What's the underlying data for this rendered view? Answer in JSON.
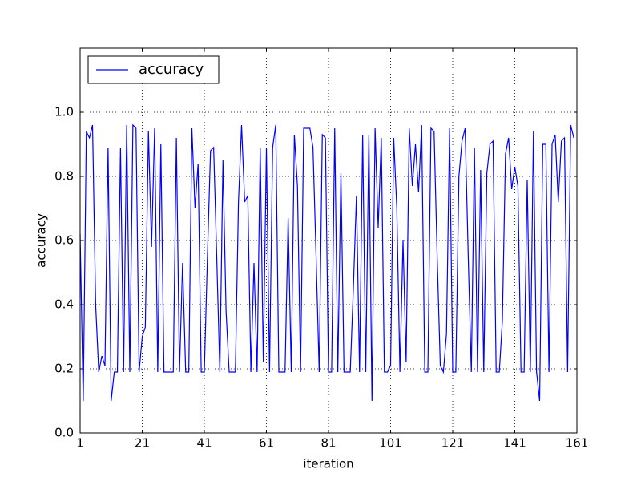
{
  "chart_data": {
    "type": "line",
    "xlabel": "iteration",
    "ylabel": "accuracy",
    "x": [
      1,
      2,
      3,
      4,
      5,
      6,
      7,
      8,
      9,
      10,
      11,
      12,
      13,
      14,
      15,
      16,
      17,
      18,
      19,
      20,
      21,
      22,
      23,
      24,
      25,
      26,
      27,
      28,
      29,
      30,
      31,
      32,
      33,
      34,
      35,
      36,
      37,
      38,
      39,
      40,
      41,
      42,
      43,
      44,
      45,
      46,
      47,
      48,
      49,
      50,
      51,
      52,
      53,
      54,
      55,
      56,
      57,
      58,
      59,
      60,
      61,
      62,
      63,
      64,
      65,
      66,
      67,
      68,
      69,
      70,
      71,
      72,
      73,
      74,
      75,
      76,
      77,
      78,
      79,
      80,
      81,
      82,
      83,
      84,
      85,
      86,
      87,
      88,
      89,
      90,
      91,
      92,
      93,
      94,
      95,
      96,
      97,
      98,
      99,
      100,
      101,
      102,
      103,
      104,
      105,
      106,
      107,
      108,
      109,
      110,
      111,
      112,
      113,
      114,
      115,
      116,
      117,
      118,
      119,
      120,
      121,
      122,
      123,
      124,
      125,
      126,
      127,
      128,
      129,
      130,
      131,
      132,
      133,
      134,
      135,
      136,
      137,
      138,
      139,
      140,
      141,
      142,
      143,
      144,
      145,
      146,
      147,
      148,
      149,
      150,
      151,
      152,
      153,
      154,
      155,
      156,
      157,
      158,
      159,
      160
    ],
    "series": [
      {
        "name": "accuracy",
        "color": "#0000ff",
        "values": [
          0.62,
          0.1,
          0.94,
          0.92,
          0.96,
          0.4,
          0.19,
          0.24,
          0.21,
          0.89,
          0.1,
          0.19,
          0.19,
          0.89,
          0.19,
          0.96,
          0.19,
          0.96,
          0.95,
          0.19,
          0.3,
          0.33,
          0.94,
          0.58,
          0.95,
          0.19,
          0.9,
          0.19,
          0.19,
          0.19,
          0.19,
          0.92,
          0.19,
          0.53,
          0.19,
          0.19,
          0.95,
          0.7,
          0.84,
          0.19,
          0.19,
          0.55,
          0.88,
          0.89,
          0.55,
          0.19,
          0.85,
          0.38,
          0.19,
          0.19,
          0.19,
          0.72,
          0.96,
          0.72,
          0.74,
          0.19,
          0.53,
          0.19,
          0.89,
          0.22,
          0.89,
          0.19,
          0.89,
          0.96,
          0.19,
          0.19,
          0.19,
          0.67,
          0.19,
          0.93,
          0.77,
          0.19,
          0.95,
          0.95,
          0.95,
          0.89,
          0.55,
          0.19,
          0.93,
          0.92,
          0.19,
          0.19,
          0.95,
          0.19,
          0.81,
          0.19,
          0.19,
          0.19,
          0.45,
          0.74,
          0.19,
          0.93,
          0.19,
          0.93,
          0.1,
          0.95,
          0.64,
          0.92,
          0.19,
          0.19,
          0.21,
          0.92,
          0.7,
          0.19,
          0.6,
          0.22,
          0.95,
          0.77,
          0.9,
          0.75,
          0.96,
          0.19,
          0.19,
          0.95,
          0.94,
          0.55,
          0.21,
          0.19,
          0.31,
          0.95,
          0.19,
          0.19,
          0.8,
          0.91,
          0.95,
          0.55,
          0.19,
          0.89,
          0.19,
          0.82,
          0.19,
          0.81,
          0.9,
          0.91,
          0.19,
          0.19,
          0.35,
          0.87,
          0.92,
          0.76,
          0.83,
          0.77,
          0.19,
          0.19,
          0.79,
          0.19,
          0.94,
          0.19,
          0.1,
          0.9,
          0.9,
          0.19,
          0.9,
          0.93,
          0.72,
          0.91,
          0.92,
          0.19,
          0.96,
          0.92
        ]
      }
    ],
    "xlim": [
      1,
      161
    ],
    "xticks": [
      1,
      21,
      41,
      61,
      81,
      101,
      121,
      141,
      161
    ],
    "ylim": [
      0,
      1.2
    ],
    "yticks": [
      {
        "value": 0,
        "label": "0.0"
      },
      0.2,
      0.4,
      0.6,
      0.8,
      {
        "value": 1,
        "label": "1.0"
      }
    ],
    "grid": true,
    "legend": "upper left"
  }
}
